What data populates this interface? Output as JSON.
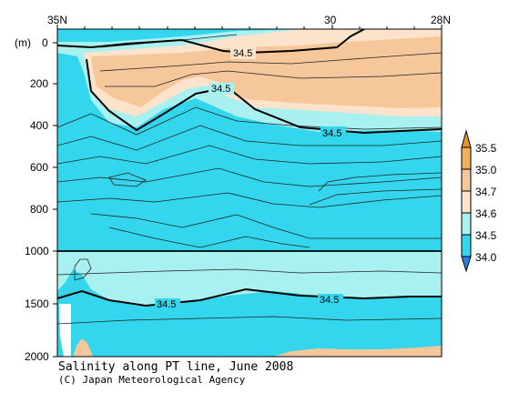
{
  "chart_data": {
    "type": "heatmap",
    "title": "Salinity along PT line, June 2008",
    "credit": "(C) Japan Meteorological Agency",
    "ylabel_unit": "(m)",
    "x_ticks": [
      "35N",
      "30",
      "28N"
    ],
    "x_range_lat": [
      35,
      28
    ],
    "y_ticks_upper": [
      "0",
      "200",
      "400",
      "600",
      "800",
      "1000"
    ],
    "y_ticks_lower": [
      "1500",
      "2000"
    ],
    "y_range_m": [
      0,
      2000
    ],
    "contour_labels": [
      "34.5",
      "34.5",
      "34.5",
      "34.5",
      "34.5"
    ],
    "colorbar": {
      "levels": [
        "35.5",
        "35.0",
        "34.7",
        "34.6",
        "34.5",
        "34.0"
      ],
      "colors": {
        "above_35_5": "#e2952f",
        "b35_0_35_5": "#f1b060",
        "b34_7_35_0": "#f5c79a",
        "b34_6_34_7": "#fde2cc",
        "b34_5_34_6": "#a9f0f0",
        "b34_0_34_5": "#33d6ec",
        "below_34_0": "#2a7fe6"
      }
    }
  }
}
